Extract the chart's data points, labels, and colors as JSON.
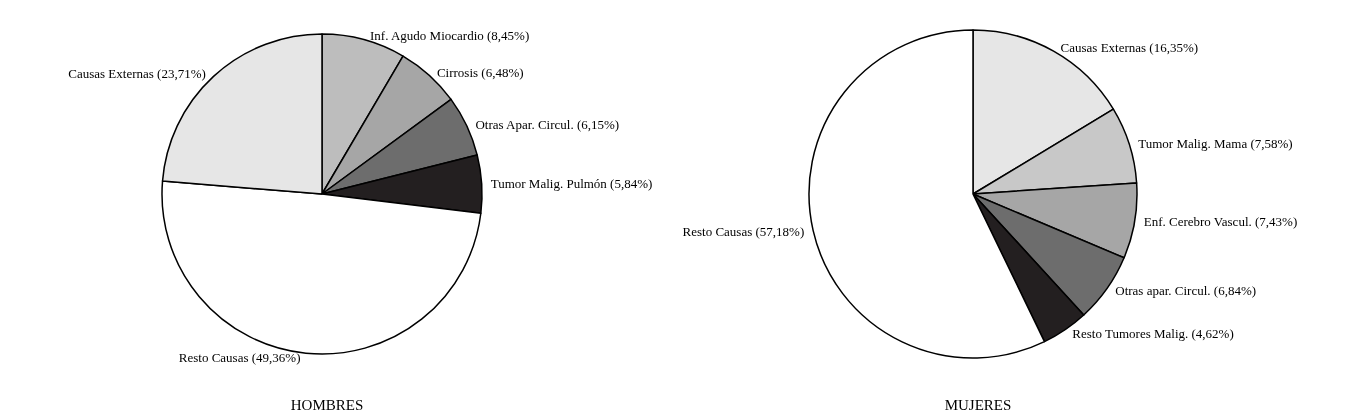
{
  "chart_data": [
    {
      "type": "pie",
      "title": "HOMBRES",
      "categories": [
        "Inf. Agudo Miocardio",
        "Cirrosis",
        "Otras Apar. Circul.",
        "Tumor Malig. Pulmón",
        "Resto Causas",
        "Causas Externas"
      ],
      "values": [
        8.45,
        6.48,
        6.15,
        5.84,
        49.36,
        23.71
      ],
      "value_labels": [
        "(8,45%)",
        "(6,48%)",
        "(6,15%)",
        "(5,84%)",
        "(49,36%)",
        "(23,71%)"
      ],
      "colors": [
        "#bdbdbd",
        "#a6a6a6",
        "#6d6d6d",
        "#231f20",
        "#ffffff",
        "#e6e6e6"
      ],
      "legend": false
    },
    {
      "type": "pie",
      "title": "MUJERES",
      "categories": [
        "Causas Externas",
        "Tumor Malig. Mama",
        "Enf. Cerebro Vascul.",
        "Otras apar. Circul.",
        "Resto Tumores Malig.",
        "Resto Causas"
      ],
      "values": [
        16.35,
        7.58,
        7.43,
        6.84,
        4.62,
        57.18
      ],
      "value_labels": [
        "(16,35%)",
        "(7,58%)",
        "(7,43%)",
        "(6,84%)",
        "(4,62%)",
        "(57,18%)"
      ],
      "colors": [
        "#e6e6e6",
        "#c8c8c8",
        "#a6a6a6",
        "#6d6d6d",
        "#231f20",
        "#ffffff"
      ],
      "legend": false
    }
  ]
}
